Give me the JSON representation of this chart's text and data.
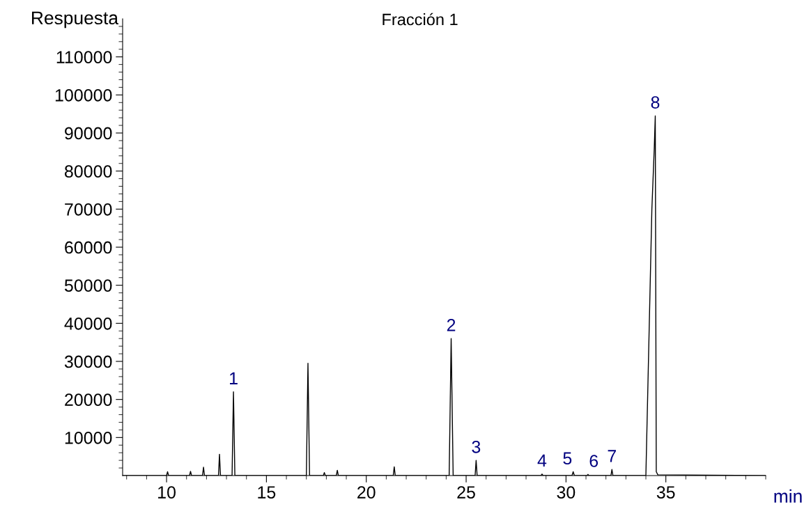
{
  "chart_data": {
    "type": "line",
    "title": "Fracción 1",
    "xlabel": "min",
    "ylabel": "Respuesta",
    "xlim": [
      7.8,
      40
    ],
    "ylim": [
      0,
      120000
    ],
    "xticks": [
      {
        "value": 8,
        "label": null
      },
      {
        "value": 9,
        "label": null
      },
      10,
      {
        "value": 11,
        "label": null
      },
      {
        "value": 12,
        "label": null
      },
      {
        "value": 13,
        "label": null
      },
      {
        "value": 14,
        "label": null
      },
      15,
      {
        "value": 16,
        "label": null
      },
      {
        "value": 17,
        "label": null
      },
      {
        "value": 18,
        "label": null
      },
      {
        "value": 19,
        "label": null
      },
      20,
      {
        "value": 21,
        "label": null
      },
      {
        "value": 22,
        "label": null
      },
      {
        "value": 23,
        "label": null
      },
      {
        "value": 24,
        "label": null
      },
      25,
      {
        "value": 26,
        "label": null
      },
      {
        "value": 27,
        "label": null
      },
      {
        "value": 28,
        "label": null
      },
      {
        "value": 29,
        "label": null
      },
      30,
      {
        "value": 31,
        "label": null
      },
      {
        "value": 32,
        "label": null
      },
      {
        "value": 33,
        "label": null
      },
      {
        "value": 34,
        "label": null
      },
      35,
      {
        "value": 36,
        "label": null
      },
      {
        "value": 37,
        "label": null
      },
      {
        "value": 38,
        "label": null
      },
      {
        "value": 39,
        "label": null
      },
      {
        "value": 40,
        "label": null
      }
    ],
    "yticks": [
      {
        "value": 2000,
        "label": null
      },
      {
        "value": 4000,
        "label": null
      },
      {
        "value": 6000,
        "label": null
      },
      {
        "value": 8000,
        "label": null
      },
      10000,
      {
        "value": 12000,
        "label": null
      },
      {
        "value": 14000,
        "label": null
      },
      {
        "value": 16000,
        "label": null
      },
      {
        "value": 18000,
        "label": null
      },
      20000,
      {
        "value": 22000,
        "label": null
      },
      {
        "value": 24000,
        "label": null
      },
      {
        "value": 26000,
        "label": null
      },
      {
        "value": 28000,
        "label": null
      },
      30000,
      {
        "value": 32000,
        "label": null
      },
      {
        "value": 34000,
        "label": null
      },
      {
        "value": 36000,
        "label": null
      },
      {
        "value": 38000,
        "label": null
      },
      40000,
      {
        "value": 42000,
        "label": null
      },
      {
        "value": 44000,
        "label": null
      },
      {
        "value": 46000,
        "label": null
      },
      {
        "value": 48000,
        "label": null
      },
      50000,
      {
        "value": 52000,
        "label": null
      },
      {
        "value": 54000,
        "label": null
      },
      {
        "value": 56000,
        "label": null
      },
      {
        "value": 58000,
        "label": null
      },
      60000,
      {
        "value": 62000,
        "label": null
      },
      {
        "value": 64000,
        "label": null
      },
      {
        "value": 66000,
        "label": null
      },
      {
        "value": 68000,
        "label": null
      },
      70000,
      {
        "value": 72000,
        "label": null
      },
      {
        "value": 74000,
        "label": null
      },
      {
        "value": 76000,
        "label": null
      },
      {
        "value": 78000,
        "label": null
      },
      80000,
      {
        "value": 82000,
        "label": null
      },
      {
        "value": 84000,
        "label": null
      },
      {
        "value": 86000,
        "label": null
      },
      {
        "value": 88000,
        "label": null
      },
      90000,
      {
        "value": 92000,
        "label": null
      },
      {
        "value": 94000,
        "label": null
      },
      {
        "value": 96000,
        "label": null
      },
      {
        "value": 98000,
        "label": null
      },
      100000,
      {
        "value": 102000,
        "label": null
      },
      {
        "value": 104000,
        "label": null
      },
      {
        "value": 106000,
        "label": null
      },
      {
        "value": 108000,
        "label": null
      },
      110000,
      {
        "value": 112000,
        "label": null
      },
      {
        "value": 114000,
        "label": null
      },
      {
        "value": 116000,
        "label": null
      },
      {
        "value": 118000,
        "label": null
      }
    ],
    "grid": false,
    "legend": false,
    "marker": "none",
    "line_style": "solid",
    "series": [
      {
        "color": "#000000",
        "x": [
          7.8,
          10.0,
          10.05,
          10.1,
          11.15,
          11.2,
          11.25,
          11.8,
          11.85,
          11.9,
          12.6,
          12.65,
          12.7,
          13.28,
          13.35,
          13.42,
          17.0,
          17.08,
          17.16,
          17.85,
          17.9,
          17.95,
          18.5,
          18.55,
          18.6,
          21.35,
          21.4,
          21.45,
          24.15,
          24.25,
          24.35,
          25.45,
          25.5,
          25.55,
          28.75,
          28.8,
          28.85,
          30.3,
          30.36,
          30.42,
          31.05,
          31.1,
          31.15,
          32.25,
          32.3,
          32.35,
          34.0,
          34.3,
          34.42,
          34.47,
          34.52,
          34.6,
          40.0
        ],
        "values": [
          0,
          0,
          1000,
          0,
          0,
          1100,
          0,
          0,
          2200,
          0,
          0,
          5600,
          0,
          0,
          22000,
          0,
          0,
          29500,
          0,
          0,
          800,
          0,
          0,
          1400,
          0,
          0,
          2300,
          0,
          0,
          36000,
          0,
          0,
          4000,
          0,
          0,
          400,
          0,
          0,
          1000,
          0,
          0,
          300,
          0,
          0,
          1600,
          0,
          0,
          70000,
          86000,
          94500,
          1000,
          200,
          0
        ]
      }
    ],
    "annotations": [
      {
        "text": "1",
        "x": 13.35,
        "y": 22000
      },
      {
        "text": "2",
        "x": 24.25,
        "y": 36000
      },
      {
        "text": "3",
        "x": 25.5,
        "y": 4000
      },
      {
        "text": "4",
        "x": 28.8,
        "y": 400
      },
      {
        "text": "5",
        "x": 30.36,
        "y": 1000
      },
      {
        "text": "6",
        "x": 31.1,
        "y": 300
      },
      {
        "text": "7",
        "x": 32.3,
        "y": 1600
      },
      {
        "text": "8",
        "x": 34.47,
        "y": 94500
      }
    ]
  }
}
